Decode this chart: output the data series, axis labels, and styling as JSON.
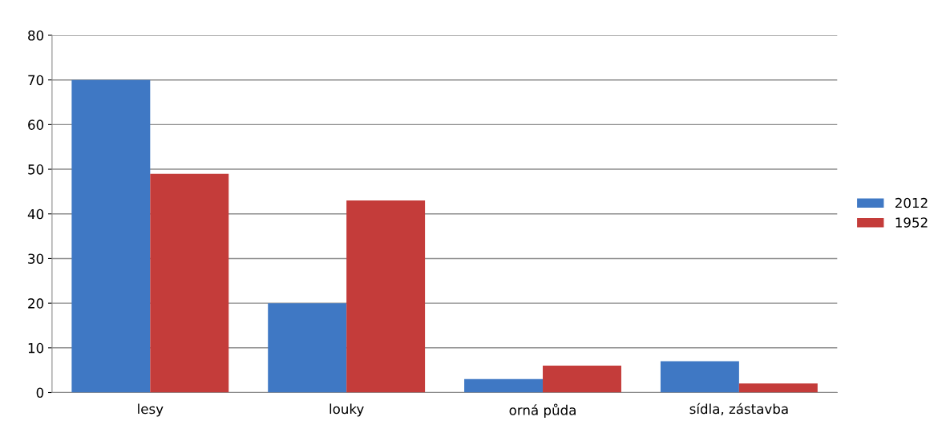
{
  "chart_data": {
    "type": "bar",
    "categories": [
      "lesy",
      "louky",
      "orná půda",
      "sídla, zástavba"
    ],
    "series": [
      {
        "name": "2012",
        "color": "#3f78c4",
        "values": [
          70,
          20,
          3,
          7
        ]
      },
      {
        "name": "1952",
        "color": "#c43c3a",
        "values": [
          49,
          43,
          6,
          2
        ]
      }
    ],
    "ylim": [
      0,
      80
    ],
    "yticks": [
      0,
      10,
      20,
      30,
      40,
      50,
      60,
      70,
      80
    ],
    "grid": "y",
    "legend": "right"
  }
}
